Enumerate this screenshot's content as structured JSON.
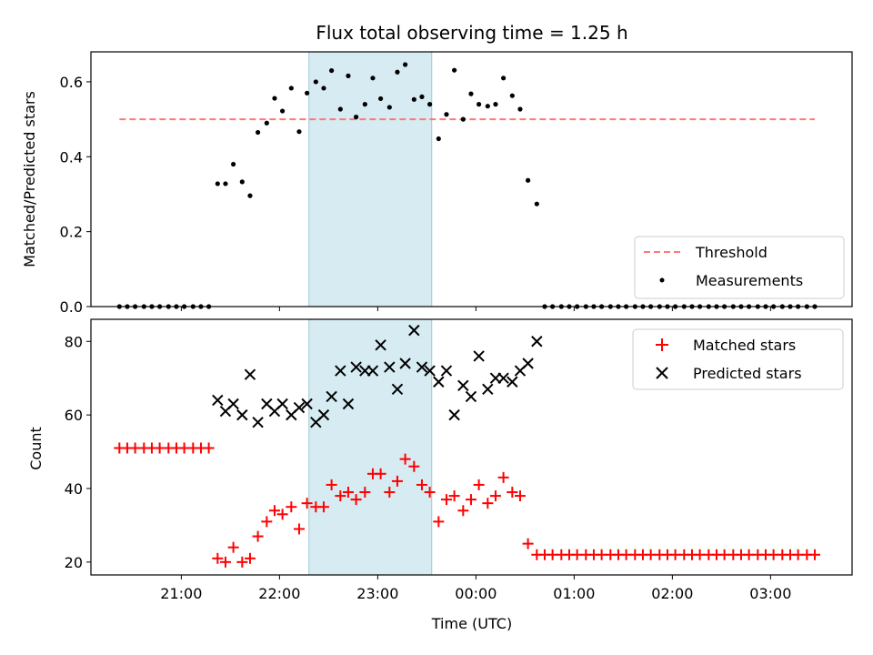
{
  "chart_data": [
    {
      "type": "scatter",
      "panel": "top",
      "title": "Flux total observing time = 1.25 h",
      "xlabel": "",
      "ylabel": "Matched/Predicted stars",
      "ylim": [
        0,
        0.68
      ],
      "yticks": [
        0.0,
        0.2,
        0.4,
        0.6
      ],
      "ytick_labels": [
        "0.0",
        "0.2",
        "0.4",
        "0.6"
      ],
      "xlim_hours": [
        20.08,
        27.83
      ],
      "legend_position": "lower-right",
      "highlight_span_hours": [
        22.3,
        23.55
      ],
      "highlight_color": "#add8e6",
      "series": [
        {
          "name": "Threshold",
          "style": "dashed-line",
          "color": "#ff7777",
          "x_hours": [
            20.37,
            27.45
          ],
          "y": [
            0.5,
            0.5
          ]
        },
        {
          "name": "Measurements",
          "style": "dot",
          "color": "#000000",
          "x_hours": [
            20.37,
            20.45,
            20.53,
            20.62,
            20.7,
            20.78,
            20.87,
            20.95,
            21.03,
            21.12,
            21.2,
            21.28,
            21.37,
            21.45,
            21.53,
            21.62,
            21.7,
            21.78,
            21.87,
            21.95,
            22.03,
            22.12,
            22.2,
            22.28,
            22.37,
            22.45,
            22.53,
            22.62,
            22.7,
            22.78,
            22.87,
            22.95,
            23.03,
            23.12,
            23.2,
            23.28,
            23.37,
            23.45,
            23.53,
            23.62,
            23.7,
            23.78,
            23.87,
            23.95,
            24.03,
            24.12,
            24.2,
            24.28,
            24.37,
            24.45,
            24.53,
            24.62,
            24.7,
            24.78,
            24.87,
            24.95,
            25.03,
            25.12,
            25.2,
            25.28,
            25.37,
            25.45,
            25.53,
            25.62,
            25.7,
            25.78,
            25.87,
            25.95,
            26.03,
            26.12,
            26.2,
            26.28,
            26.37,
            26.45,
            26.53,
            26.62,
            26.7,
            26.78,
            26.87,
            26.95,
            27.03,
            27.12,
            27.2,
            27.28,
            27.37,
            27.45
          ],
          "y": [
            0,
            0,
            0,
            0,
            0,
            0,
            0,
            0,
            0,
            0,
            0,
            0,
            0.328,
            0.328,
            0.38,
            0.333,
            0.296,
            0.465,
            0.49,
            0.556,
            0.522,
            0.583,
            0.467,
            0.57,
            0.6,
            0.583,
            0.63,
            0.527,
            0.616,
            0.506,
            0.54,
            0.61,
            0.555,
            0.532,
            0.626,
            0.646,
            0.553,
            0.56,
            0.54,
            0.448,
            0.513,
            0.631,
            0.5,
            0.568,
            0.54,
            0.535,
            0.54,
            0.61,
            0.563,
            0.527,
            0.337,
            0.274,
            0,
            0,
            0,
            0,
            0,
            0,
            0,
            0,
            0,
            0,
            0,
            0,
            0,
            0,
            0,
            0,
            0,
            0,
            0,
            0,
            0,
            0,
            0,
            0,
            0,
            0,
            0,
            0,
            0,
            0,
            0,
            0,
            0,
            0
          ]
        }
      ]
    },
    {
      "type": "scatter",
      "panel": "bottom",
      "xlabel": "Time (UTC)",
      "ylabel": "Count",
      "ylim": [
        16.5,
        86
      ],
      "yticks": [
        20,
        40,
        60,
        80
      ],
      "ytick_labels": [
        "20",
        "40",
        "60",
        "80"
      ],
      "xlim_hours": [
        20.08,
        27.83
      ],
      "xticks_hours": [
        21,
        22,
        23,
        24,
        25,
        26,
        27
      ],
      "xtick_labels": [
        "21:00",
        "22:00",
        "23:00",
        "00:00",
        "01:00",
        "02:00",
        "03:00"
      ],
      "legend_position": "upper-right",
      "highlight_span_hours": [
        22.3,
        23.55
      ],
      "highlight_color": "#add8e6",
      "series": [
        {
          "name": "Matched stars",
          "marker": "plus",
          "color": "#ff0000",
          "x_hours": [
            20.37,
            20.45,
            20.53,
            20.62,
            20.7,
            20.78,
            20.87,
            20.95,
            21.03,
            21.12,
            21.2,
            21.28,
            21.37,
            21.45,
            21.53,
            21.62,
            21.7,
            21.78,
            21.87,
            21.95,
            22.03,
            22.12,
            22.2,
            22.28,
            22.37,
            22.45,
            22.53,
            22.62,
            22.7,
            22.78,
            22.87,
            22.95,
            23.03,
            23.12,
            23.2,
            23.28,
            23.37,
            23.45,
            23.53,
            23.62,
            23.7,
            23.78,
            23.87,
            23.95,
            24.03,
            24.12,
            24.2,
            24.28,
            24.37,
            24.45,
            24.53,
            24.62,
            24.7,
            24.78,
            24.87,
            24.95,
            25.03,
            25.12,
            25.2,
            25.28,
            25.37,
            25.45,
            25.53,
            25.62,
            25.7,
            25.78,
            25.87,
            25.95,
            26.03,
            26.12,
            26.2,
            26.28,
            26.37,
            26.45,
            26.53,
            26.62,
            26.7,
            26.78,
            26.87,
            26.95,
            27.03,
            27.12,
            27.2,
            27.28,
            27.37,
            27.45
          ],
          "y": [
            51,
            51,
            51,
            51,
            51,
            51,
            51,
            51,
            51,
            51,
            51,
            51,
            21,
            20,
            24,
            20,
            21,
            27,
            31,
            34,
            33,
            35,
            29,
            36,
            35,
            35,
            41,
            38,
            39,
            37,
            39,
            44,
            44,
            39,
            42,
            48,
            46,
            41,
            39,
            31,
            37,
            38,
            34,
            37,
            41,
            36,
            38,
            43,
            39,
            38,
            25,
            22,
            22,
            22,
            22,
            22,
            22,
            22,
            22,
            22,
            22,
            22,
            22,
            22,
            22,
            22,
            22,
            22,
            22,
            22,
            22,
            22,
            22,
            22,
            22,
            22,
            22,
            22,
            22,
            22,
            22,
            22,
            22,
            22,
            22,
            22
          ]
        },
        {
          "name": "Predicted stars",
          "marker": "x",
          "color": "#000000",
          "x_hours": [
            21.37,
            21.45,
            21.53,
            21.62,
            21.7,
            21.78,
            21.87,
            21.95,
            22.03,
            22.12,
            22.2,
            22.28,
            22.37,
            22.45,
            22.53,
            22.62,
            22.7,
            22.78,
            22.87,
            22.95,
            23.03,
            23.12,
            23.2,
            23.28,
            23.37,
            23.45,
            23.53,
            23.62,
            23.7,
            23.78,
            23.87,
            23.95,
            24.03,
            24.12,
            24.2,
            24.28,
            24.37,
            24.45,
            24.53,
            24.62
          ],
          "y": [
            64,
            61,
            63,
            60,
            71,
            58,
            63,
            61,
            63,
            60,
            62,
            63,
            58,
            60,
            65,
            72,
            63,
            73,
            72,
            72,
            79,
            73,
            67,
            74,
            83,
            73,
            72,
            69,
            72,
            60,
            68,
            65,
            76,
            67,
            70,
            70,
            69,
            72,
            74,
            80
          ]
        }
      ]
    }
  ]
}
